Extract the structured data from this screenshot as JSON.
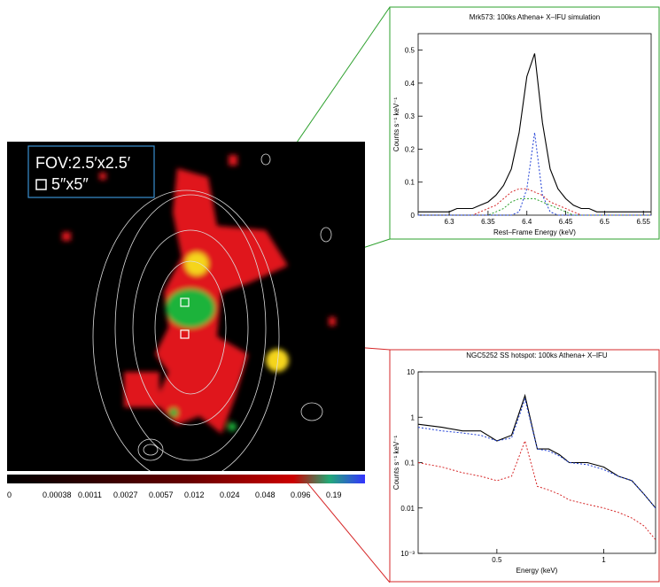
{
  "image": {
    "fov_label": "FOV:2.5′x2.5′",
    "box_label": "5″x5″",
    "colorbar_ticks": [
      0,
      0.00038,
      0.0011,
      0.0027,
      0.0057,
      0.012,
      0.024,
      0.048,
      0.096,
      0.19
    ]
  },
  "chart_data": [
    {
      "type": "line",
      "title": "Mrk573: 100ks Athena+ X–IFU simulation",
      "x_label": "Rest–Frame Energy (keV)",
      "y_label": "Counts s⁻¹ keV⁻¹",
      "x": [
        6.26,
        6.27,
        6.28,
        6.29,
        6.3,
        6.31,
        6.32,
        6.33,
        6.34,
        6.35,
        6.36,
        6.37,
        6.38,
        6.39,
        6.4,
        6.41,
        6.42,
        6.43,
        6.44,
        6.45,
        6.46,
        6.47,
        6.48,
        6.49,
        6.5,
        6.51,
        6.52,
        6.53,
        6.54,
        6.55,
        6.56
      ],
      "xlim": [
        6.26,
        6.56
      ],
      "xticks": [
        6.3,
        6.35,
        6.4,
        6.45,
        6.5,
        6.55
      ],
      "ylim": [
        0,
        0.55
      ],
      "yticks": [
        0,
        0.1,
        0.2,
        0.3,
        0.4,
        0.5
      ],
      "series": [
        {
          "color": "#000000",
          "style": "solid",
          "values": [
            0.01,
            0.01,
            0.01,
            0.01,
            0.01,
            0.02,
            0.02,
            0.02,
            0.03,
            0.04,
            0.06,
            0.09,
            0.14,
            0.25,
            0.42,
            0.49,
            0.28,
            0.14,
            0.08,
            0.05,
            0.03,
            0.02,
            0.02,
            0.01,
            0.01,
            0.01,
            0.01,
            0.01,
            0.01,
            0.01,
            0.01
          ]
        },
        {
          "color": "#d62728",
          "style": "dotted",
          "values": [
            0,
            0,
            0,
            0,
            0,
            0,
            0,
            0,
            0.01,
            0.02,
            0.03,
            0.05,
            0.07,
            0.08,
            0.08,
            0.07,
            0.06,
            0.04,
            0.03,
            0.02,
            0.01,
            0,
            0,
            0,
            0,
            0,
            0,
            0,
            0,
            0,
            0
          ]
        },
        {
          "color": "#2ca02c",
          "style": "dotted",
          "values": [
            0,
            0,
            0,
            0,
            0,
            0,
            0,
            0,
            0,
            0,
            0.01,
            0.02,
            0.04,
            0.05,
            0.05,
            0.05,
            0.04,
            0.03,
            0.02,
            0.01,
            0,
            0,
            0,
            0,
            0,
            0,
            0,
            0,
            0,
            0,
            0
          ]
        },
        {
          "color": "#1f3fd6",
          "style": "dotted",
          "values": [
            0,
            0,
            0,
            0,
            0,
            0,
            0,
            0,
            0,
            0,
            0,
            0,
            0,
            0.01,
            0.08,
            0.25,
            0.06,
            0.01,
            0,
            0,
            0,
            0,
            0,
            0,
            0,
            0,
            0,
            0,
            0,
            0,
            0
          ]
        }
      ]
    },
    {
      "type": "line",
      "title": "NGC5252 SS hotspot: 100ks Athena+ X–IFU",
      "x_label": "Energy (keV)",
      "y_label": "Counts s⁻¹ keV⁻¹",
      "x": [
        0.3,
        0.35,
        0.4,
        0.45,
        0.5,
        0.55,
        0.6,
        0.65,
        0.7,
        0.75,
        0.8,
        0.9,
        1.0,
        1.1,
        1.2,
        1.3,
        1.4
      ],
      "xlim": [
        0.3,
        1.4
      ],
      "xticks": [
        0.5,
        1
      ],
      "xlog": true,
      "ylim": [
        0.001,
        10
      ],
      "ylog": true,
      "yticks": [
        {
          "value": 0.001,
          "label": "10⁻³"
        },
        0.01,
        0.1,
        1,
        10
      ],
      "series": [
        {
          "color": "#000000",
          "style": "solid",
          "values": [
            0.7,
            0.6,
            0.5,
            0.5,
            0.3,
            0.4,
            3,
            0.2,
            0.2,
            0.15,
            0.1,
            0.1,
            0.08,
            0.05,
            0.04,
            0.02,
            0.01
          ]
        },
        {
          "color": "#1f3fd6",
          "style": "dotted",
          "values": [
            0.6,
            0.5,
            0.45,
            0.4,
            0.3,
            0.35,
            2.5,
            0.2,
            0.18,
            0.14,
            0.1,
            0.09,
            0.07,
            0.05,
            0.04,
            0.02,
            0.01
          ]
        },
        {
          "color": "#d62728",
          "style": "dotted",
          "values": [
            0.1,
            0.08,
            0.06,
            0.05,
            0.04,
            0.05,
            0.3,
            0.03,
            0.025,
            0.02,
            0.015,
            0.012,
            0.01,
            0.008,
            0.006,
            0.004,
            0.002
          ]
        }
      ]
    }
  ]
}
